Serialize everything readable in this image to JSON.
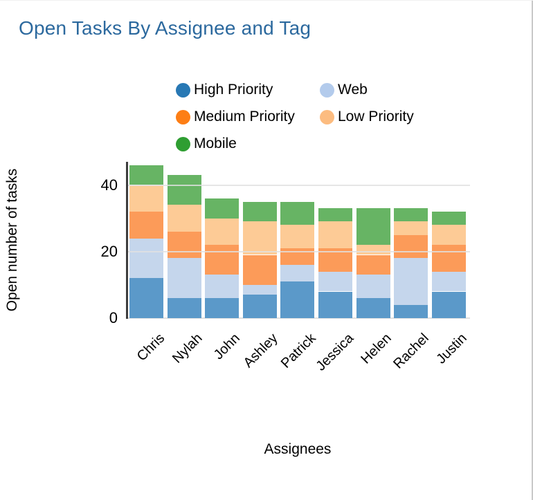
{
  "title": "Open Tasks By Assignee and Tag",
  "y_axis_title": "Open number of tasks",
  "x_axis_title": "Assignees",
  "colors": {
    "title_text": "#2c699e",
    "axis_line": "#3d3d3d",
    "gridline": "#e1e1e1"
  },
  "chart_data": {
    "type": "bar",
    "stacked": true,
    "title": "Open Tasks By Assignee and Tag",
    "xlabel": "Assignees",
    "ylabel": "Open number of tasks",
    "categories": [
      "Chris",
      "Nylah",
      "John",
      "Ashley",
      "Patrick",
      "Jessica",
      "Helen",
      "Rachel",
      "Justin"
    ],
    "series": [
      {
        "name": "High Priority",
        "values": [
          12,
          6,
          6,
          7,
          11,
          8,
          6,
          4,
          8
        ],
        "bar_color": "#5b99c9",
        "legend_color": "#2878b4"
      },
      {
        "name": "Web",
        "values": [
          12,
          12,
          7,
          3,
          5,
          6,
          7,
          14,
          6
        ],
        "bar_color": "#c5d6ec",
        "legend_color": "#b3cbec"
      },
      {
        "name": "Medium Priority",
        "values": [
          8,
          8,
          9,
          9,
          5,
          7,
          6,
          7,
          8
        ],
        "bar_color": "#fc9b59",
        "legend_color": "#fd7e15"
      },
      {
        "name": "Low Priority",
        "values": [
          8,
          8,
          8,
          10,
          7,
          8,
          3,
          4,
          6
        ],
        "bar_color": "#fdcb96",
        "legend_color": "#fcbc80"
      },
      {
        "name": "Mobile",
        "values": [
          6,
          9,
          6,
          6,
          7,
          4,
          11,
          4,
          4
        ],
        "bar_color": "#67b464",
        "legend_color": "#2f9e32"
      }
    ],
    "totals": [
      46,
      43,
      36,
      35,
      35,
      33,
      33,
      33,
      32
    ],
    "y_ticks": [
      0,
      20,
      40
    ],
    "ylim": [
      0,
      47
    ],
    "grid": true,
    "legend_position": "top",
    "legend_columns": [
      [
        "High Priority",
        "Medium Priority",
        "Mobile"
      ],
      [
        "Web",
        "Low Priority"
      ]
    ]
  }
}
